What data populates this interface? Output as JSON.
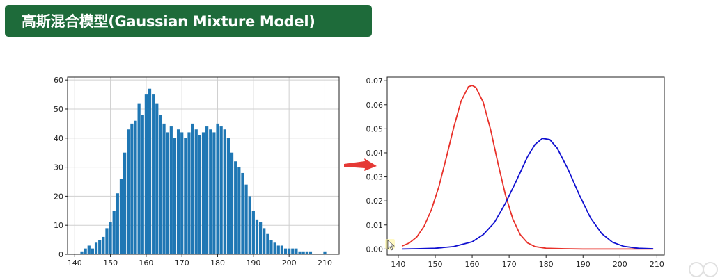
{
  "slide": {
    "title": "高斯混合模型(Gaussian Mixture Model)",
    "title_bg_color": "#1e6b3a",
    "arrow_color": "#e53935",
    "cursor_icon": "mouse-pointer-icon",
    "corner_icon": "watermark-logo-icon"
  },
  "chart_data": [
    {
      "type": "bar",
      "title": "",
      "xlabel": "",
      "ylabel": "",
      "xlim": [
        138,
        214
      ],
      "ylim": [
        0,
        61
      ],
      "xticks": [
        140,
        150,
        160,
        170,
        180,
        190,
        200,
        210
      ],
      "yticks": [
        0,
        10,
        20,
        30,
        40,
        50,
        60
      ],
      "grid": true,
      "color": "#1f77b4",
      "series": [
        {
          "x": [
            142,
            143,
            144,
            145,
            146,
            147,
            148,
            149,
            150,
            151,
            152,
            153,
            154,
            155,
            156,
            157,
            158,
            159,
            160,
            161,
            162,
            163,
            164,
            165,
            166,
            167,
            168,
            169,
            170,
            171,
            172,
            173,
            174,
            175,
            176,
            177,
            178,
            179,
            180,
            181,
            182,
            183,
            184,
            185,
            186,
            187,
            188,
            189,
            190,
            191,
            192,
            193,
            194,
            195,
            196,
            197,
            198,
            199,
            200,
            201,
            202,
            203,
            204,
            205,
            206,
            207,
            208,
            209,
            210
          ],
          "values": [
            1,
            2,
            3,
            2,
            4,
            5,
            6,
            9,
            11,
            15,
            21,
            26,
            35,
            43,
            45,
            46,
            52,
            48,
            55,
            57,
            55,
            52,
            48,
            45,
            42,
            44,
            40,
            43,
            42,
            40,
            42,
            45,
            43,
            41,
            42,
            44,
            43,
            42,
            45,
            44,
            43,
            40,
            35,
            32,
            30,
            28,
            24,
            20,
            15,
            12,
            11,
            9,
            7,
            5,
            4,
            3,
            3,
            2,
            2,
            2,
            2,
            1,
            1,
            1,
            1,
            0,
            0,
            0,
            1
          ]
        }
      ]
    },
    {
      "type": "line",
      "title": "",
      "xlabel": "",
      "ylabel": "",
      "xlim": [
        137,
        212
      ],
      "ylim": [
        -0.0025,
        0.0715
      ],
      "xticks": [
        140,
        150,
        160,
        170,
        180,
        190,
        200,
        210
      ],
      "yticks": [
        0.0,
        0.01,
        0.02,
        0.03,
        0.04,
        0.05,
        0.06,
        0.07
      ],
      "ytick_labels": [
        "0.00",
        "0.01",
        "0.02",
        "0.03",
        "0.04",
        "0.05",
        "0.06",
        "0.07"
      ],
      "grid": false,
      "series": [
        {
          "color": "#e8312a",
          "x": [
            141,
            143,
            145,
            147,
            149,
            151,
            153,
            155,
            157,
            159,
            160,
            161,
            163,
            165,
            167,
            169,
            171,
            173,
            175,
            177,
            180,
            185,
            190,
            200,
            209
          ],
          "values": [
            0.0012,
            0.0025,
            0.005,
            0.0095,
            0.0165,
            0.026,
            0.038,
            0.0505,
            0.0615,
            0.0675,
            0.068,
            0.0672,
            0.061,
            0.0495,
            0.0355,
            0.0225,
            0.0125,
            0.006,
            0.0025,
            0.001,
            0.0003,
            0.0001,
            0.0,
            0.0,
            0.0
          ]
        },
        {
          "color": "#1010d0",
          "x": [
            141,
            145,
            150,
            155,
            160,
            163,
            166,
            169,
            172,
            175,
            177,
            179,
            181,
            183,
            186,
            189,
            192,
            195,
            198,
            201,
            205,
            209
          ],
          "values": [
            0.0,
            0.0001,
            0.0003,
            0.001,
            0.003,
            0.006,
            0.011,
            0.019,
            0.0285,
            0.0385,
            0.0435,
            0.046,
            0.0455,
            0.042,
            0.033,
            0.0225,
            0.013,
            0.0065,
            0.0028,
            0.0011,
            0.0003,
            0.0001
          ]
        }
      ]
    }
  ]
}
